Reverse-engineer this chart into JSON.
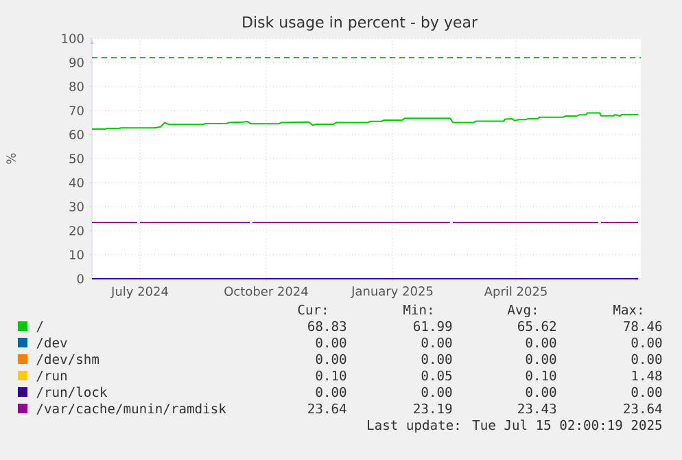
{
  "chart_data": {
    "type": "line",
    "title": "Disk usage in percent - by year",
    "ylabel": "%",
    "xlim": [
      "2024-06-10",
      "2025-07-15"
    ],
    "xticks": [
      {
        "value": "2024-07-15",
        "label": "July 2024"
      },
      {
        "value": "2024-10-15",
        "label": "October 2024"
      },
      {
        "value": "2025-01-15",
        "label": "January 2025"
      },
      {
        "value": "2025-04-15",
        "label": "April 2025"
      }
    ],
    "ylim": [
      0,
      100
    ],
    "yticks": [
      0,
      10,
      20,
      30,
      40,
      50,
      60,
      70,
      80,
      90,
      100
    ],
    "grid": true,
    "legend": "bottom",
    "line_style": "solid",
    "marker": "none",
    "ref_lines": [
      {
        "axis": "y",
        "value": 92,
        "color": "#00cc00",
        "line_style": "dashed"
      }
    ],
    "series": [
      {
        "name": "/",
        "color": "#00cc00",
        "x": [
          "2024-06-10",
          "2024-06-20",
          "2024-06-21",
          "2024-06-30",
          "2024-07-01",
          "2024-07-26",
          "2024-07-30",
          "2024-08-02",
          "2024-08-05",
          "2024-08-30",
          "2024-09-01",
          "2024-09-16",
          "2024-09-18",
          "2024-09-28",
          "2024-10-01",
          "2024-10-04",
          "2024-10-24",
          "2024-10-26",
          "2024-11-15",
          "2024-11-18",
          "2024-11-20",
          "2024-12-03",
          "2024-12-05",
          "2024-12-28",
          "2024-12-30",
          "2025-01-07",
          "2025-01-09",
          "2025-01-22",
          "2025-01-24",
          "2025-02-26",
          "2025-02-28",
          "2025-03-15",
          "2025-03-17",
          "2025-04-06",
          "2025-04-07",
          "2025-04-12",
          "2025-04-14",
          "2025-04-17",
          "2025-04-22",
          "2025-04-24",
          "2025-05-01",
          "2025-05-02",
          "2025-05-19",
          "2025-05-21",
          "2025-05-29",
          "2025-05-31",
          "2025-06-05",
          "2025-06-06",
          "2025-06-15",
          "2025-06-16",
          "2025-06-25",
          "2025-06-26",
          "2025-06-30",
          "2025-07-01",
          "2025-07-13"
        ],
        "values": [
          62.3,
          62.3,
          62.6,
          62.6,
          62.8,
          62.8,
          63.2,
          65.0,
          64.2,
          64.2,
          64.6,
          64.6,
          65.0,
          65.2,
          65.4,
          64.5,
          64.5,
          65.0,
          65.2,
          63.8,
          64.3,
          64.3,
          65.0,
          65.0,
          65.5,
          65.5,
          66.0,
          66.0,
          66.8,
          66.8,
          65.0,
          65.0,
          65.6,
          65.6,
          66.4,
          66.6,
          65.8,
          66.2,
          66.2,
          66.6,
          66.6,
          67.2,
          67.2,
          67.7,
          67.7,
          68.2,
          68.2,
          69.0,
          69.0,
          67.8,
          67.8,
          68.3,
          67.7,
          68.3,
          68.3
        ]
      },
      {
        "name": "/dev",
        "color": "#0066b3"
      },
      {
        "name": "/dev/shm",
        "color": "#ff8000"
      },
      {
        "name": "/run",
        "color": "#ffcc00"
      },
      {
        "name": "/run/lock",
        "color": "#330099",
        "x": [
          "2024-06-10",
          "2025-07-13"
        ],
        "values": [
          0,
          0
        ]
      },
      {
        "name": "/var/cache/munin/ramdisk",
        "color": "#990099",
        "x": [
          "2024-06-10",
          "2024-07-13",
          "2024-07-14",
          "2024-07-15",
          "2024-10-03",
          "2024-10-04",
          "2024-10-05",
          "2025-02-26",
          "2025-02-27",
          "2025-02-28",
          "2025-06-14",
          "2025-06-15",
          "2025-06-16",
          "2025-07-13"
        ],
        "values": [
          23.4,
          23.4,
          null,
          23.4,
          23.4,
          null,
          23.4,
          23.4,
          null,
          23.4,
          23.4,
          null,
          23.4,
          23.4
        ]
      }
    ],
    "annotations": [
      "Cur:",
      "Min:",
      "Avg:",
      "Max:",
      "68.83",
      "61.99",
      "65.62",
      "78.46",
      "0.00",
      "0.00",
      "0.00",
      "0.00",
      "0.00",
      "0.00",
      "0.00",
      "0.00",
      "0.10",
      "0.05",
      "0.10",
      "1.48",
      "0.00",
      "0.00",
      "0.00",
      "0.00",
      "23.64",
      "23.19",
      "23.43",
      "23.64",
      "Last update: Tue Jul 15 02:00:19 2025"
    ]
  }
}
